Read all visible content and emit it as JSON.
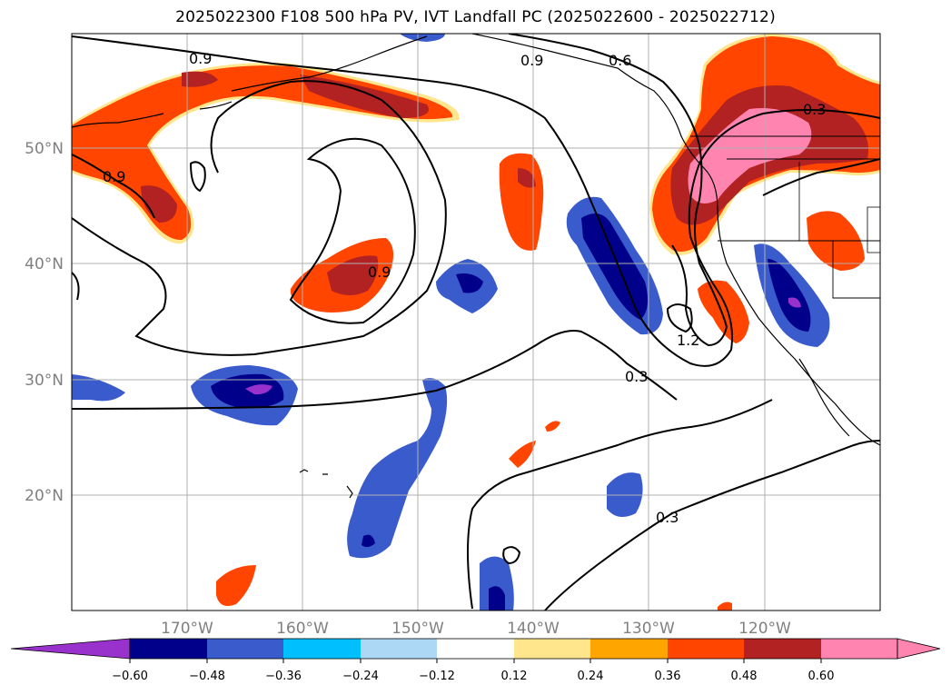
{
  "title": "2025022300 F108 500 hPa PV, IVT Landfall PC (2025022600 - 2025022712)",
  "map": {
    "lat_ticks": [
      "50°N",
      "40°N",
      "30°N",
      "20°N"
    ],
    "lon_ticks": [
      "170°W",
      "160°W",
      "150°W",
      "140°W",
      "130°W",
      "120°W"
    ],
    "gridlines": true,
    "contour_labels": [
      "0.9",
      "0.9",
      "0.9",
      "0.9",
      "0.6",
      "0.3",
      "1.2",
      "0.3",
      "0.3"
    ]
  },
  "colorbar": {
    "tick_labels": [
      "−0.60",
      "−0.48",
      "−0.36",
      "−0.24",
      "−0.12",
      "0.12",
      "0.24",
      "0.36",
      "0.48",
      "0.60"
    ],
    "colors": [
      "#9932cc",
      "#00008b",
      "#3a5bcc",
      "#00bfff",
      "#add8f5",
      "#ffffff",
      "#ffe68c",
      "#ffa500",
      "#ff4500",
      "#b22222",
      "#ff85b0",
      "#ff85b0"
    ]
  }
}
